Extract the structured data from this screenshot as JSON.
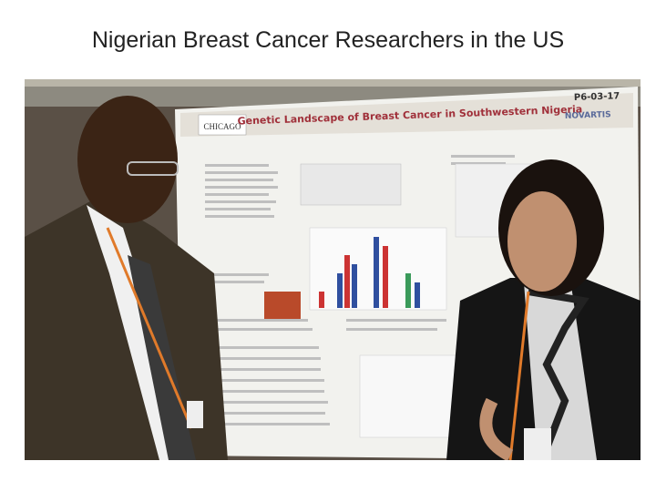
{
  "header": {
    "title": "Nigerian Breast Cancer Researchers in the US"
  },
  "photo": {
    "poster_title": "Genetic Landscape of Breast Cancer in Southwestern Nigeria",
    "poster_id": "P6-03-17",
    "logo": "NOVARTIS",
    "institution": "CHICAGO"
  }
}
